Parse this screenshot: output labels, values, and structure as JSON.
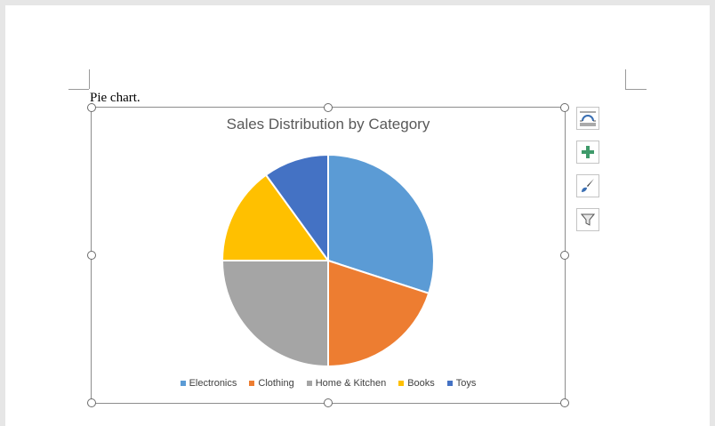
{
  "caption": "Pie chart.",
  "chart_data": {
    "type": "pie",
    "title": "Sales Distribution by Category",
    "categories": [
      "Electronics",
      "Clothing",
      "Home & Kitchen",
      "Books",
      "Toys"
    ],
    "values": [
      30,
      20,
      25,
      15,
      10
    ],
    "colors": [
      "#5b9bd5",
      "#ed7d31",
      "#a5a5a5",
      "#ffc000",
      "#4472c4"
    ],
    "legend_position": "bottom"
  },
  "side_tools": [
    {
      "icon": "layout-options-icon"
    },
    {
      "icon": "chart-elements-plus-icon"
    },
    {
      "icon": "chart-styles-brush-icon"
    },
    {
      "icon": "chart-filters-funnel-icon"
    }
  ]
}
